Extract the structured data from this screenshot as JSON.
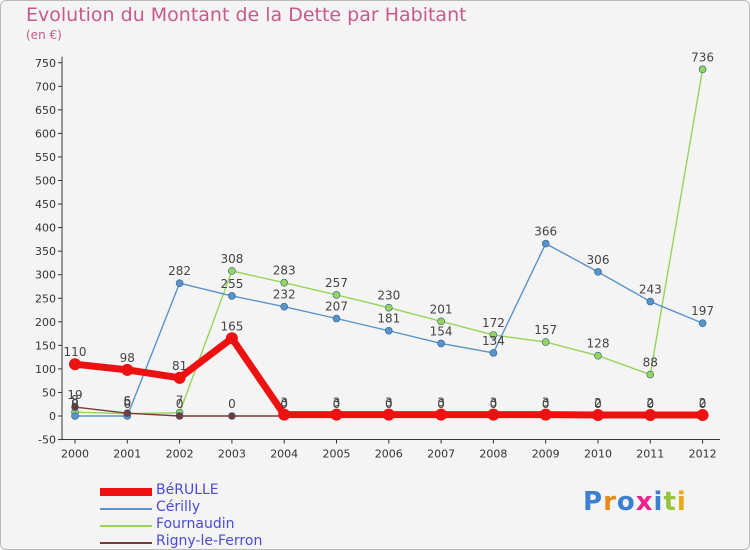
{
  "chart_data": {
    "type": "line",
    "title": "Evolution du Montant de la Dette par Habitant",
    "unit_label": "(en €)",
    "x": [
      "2000",
      "2001",
      "2002",
      "2003",
      "2004",
      "2005",
      "2006",
      "2007",
      "2008",
      "2009",
      "2010",
      "2011",
      "2012"
    ],
    "yticks": [
      750,
      700,
      650,
      600,
      550,
      500,
      450,
      400,
      350,
      300,
      250,
      200,
      150,
      100,
      50,
      0,
      -50
    ],
    "ylim": [
      -50,
      750
    ],
    "series": [
      {
        "name": "BéRULLE",
        "color": "#ee1111",
        "values": [
          110,
          98,
          81,
          165,
          3,
          3,
          3,
          3,
          3,
          3,
          2,
          2,
          2
        ],
        "labels": [
          "110",
          "98",
          "81",
          "165",
          "3",
          "3",
          "3",
          "3",
          "3",
          "3",
          "2",
          "2",
          "2"
        ]
      },
      {
        "name": "Cérilly",
        "color": "#5a93c9",
        "values": [
          0,
          0,
          282,
          255,
          232,
          207,
          181,
          154,
          134,
          366,
          306,
          243,
          197
        ],
        "labels": [
          "0",
          "0",
          "282",
          "255",
          "232",
          "207",
          "181",
          "154",
          "134",
          "366",
          "306",
          "243",
          "197"
        ]
      },
      {
        "name": "Fournaudin",
        "color": "#96d45a",
        "values": [
          8,
          5,
          7,
          308,
          283,
          257,
          230,
          201,
          172,
          157,
          128,
          88,
          736
        ],
        "labels": [
          "8",
          "5",
          "7",
          "308",
          "283",
          "257",
          "230",
          "201",
          "172",
          "157",
          "128",
          "88",
          "736"
        ]
      },
      {
        "name": "Rigny-le-Ferron",
        "color": "#7a3a3a",
        "values": [
          19,
          6,
          0,
          0,
          0,
          0,
          0,
          0,
          0,
          0,
          0,
          0,
          0
        ],
        "labels": [
          "19",
          "6",
          "0",
          "0",
          "0",
          "0",
          "0",
          "0",
          "0",
          "0",
          "0",
          "0",
          "0"
        ]
      }
    ],
    "legend_position": "bottom-left",
    "grid": false
  },
  "logo": {
    "text": "Proxiti"
  }
}
